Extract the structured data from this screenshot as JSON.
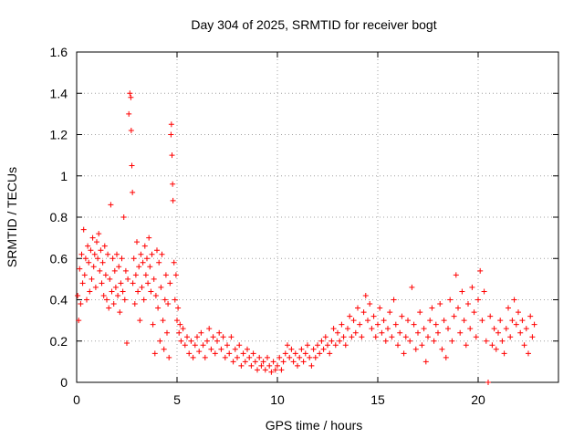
{
  "chart_data": {
    "type": "scatter",
    "title": "Day 304 of 2025, SRMTID for receiver bogt",
    "xlabel": "GPS time / hours",
    "ylabel": "SRMTID / TECUs",
    "xlim": [
      0,
      24
    ],
    "ylim": [
      0,
      1.6
    ],
    "xticks": [
      0,
      5,
      10,
      15,
      20
    ],
    "yticks": [
      0,
      0.2,
      0.4,
      0.6,
      0.8,
      1,
      1.2,
      1.4,
      1.6
    ],
    "ytick_labels": [
      "0",
      "0.2",
      "0.4",
      "0.6",
      "0.8",
      "1",
      "1.2",
      "1.4",
      "1.6"
    ],
    "grid": true,
    "marker": "+",
    "color": "#ff0000",
    "series": [
      {
        "name": "SRMTID",
        "points": [
          [
            0.05,
            0.42
          ],
          [
            0.1,
            0.3
          ],
          [
            0.15,
            0.55
          ],
          [
            0.2,
            0.38
          ],
          [
            0.25,
            0.62
          ],
          [
            0.3,
            0.48
          ],
          [
            0.35,
            0.74
          ],
          [
            0.4,
            0.52
          ],
          [
            0.45,
            0.6
          ],
          [
            0.5,
            0.4
          ],
          [
            0.55,
            0.66
          ],
          [
            0.6,
            0.58
          ],
          [
            0.65,
            0.44
          ],
          [
            0.7,
            0.64
          ],
          [
            0.75,
            0.5
          ],
          [
            0.8,
            0.7
          ],
          [
            0.85,
            0.56
          ],
          [
            0.9,
            0.62
          ],
          [
            0.95,
            0.46
          ],
          [
            1.0,
            0.68
          ],
          [
            1.05,
            0.6
          ],
          [
            1.1,
            0.72
          ],
          [
            1.15,
            0.54
          ],
          [
            1.2,
            0.64
          ],
          [
            1.25,
            0.48
          ],
          [
            1.3,
            0.58
          ],
          [
            1.35,
            0.42
          ],
          [
            1.4,
            0.66
          ],
          [
            1.45,
            0.52
          ],
          [
            1.5,
            0.4
          ],
          [
            1.55,
            0.62
          ],
          [
            1.6,
            0.36
          ],
          [
            1.65,
            0.5
          ],
          [
            1.7,
            0.86
          ],
          [
            1.75,
            0.44
          ],
          [
            1.8,
            0.6
          ],
          [
            1.85,
            0.38
          ],
          [
            1.9,
            0.54
          ],
          [
            1.95,
            0.46
          ],
          [
            2.0,
            0.62
          ],
          [
            2.05,
            0.42
          ],
          [
            2.1,
            0.56
          ],
          [
            2.15,
            0.34
          ],
          [
            2.2,
            0.48
          ],
          [
            2.25,
            0.6
          ],
          [
            2.3,
            0.44
          ],
          [
            2.35,
            0.8
          ],
          [
            2.4,
            0.4
          ],
          [
            2.45,
            0.54
          ],
          [
            2.5,
            0.19
          ],
          [
            2.55,
            0.5
          ],
          [
            2.6,
            1.3
          ],
          [
            2.65,
            1.4
          ],
          [
            2.7,
            1.38
          ],
          [
            2.72,
            1.22
          ],
          [
            2.75,
            1.05
          ],
          [
            2.78,
            0.92
          ],
          [
            2.8,
            0.48
          ],
          [
            2.85,
            0.6
          ],
          [
            2.9,
            0.38
          ],
          [
            2.95,
            0.52
          ],
          [
            3.0,
            0.68
          ],
          [
            3.05,
            0.44
          ],
          [
            3.1,
            0.56
          ],
          [
            3.15,
            0.3
          ],
          [
            3.2,
            0.62
          ],
          [
            3.25,
            0.46
          ],
          [
            3.3,
            0.58
          ],
          [
            3.35,
            0.4
          ],
          [
            3.4,
            0.66
          ],
          [
            3.45,
            0.52
          ],
          [
            3.5,
            0.6
          ],
          [
            3.55,
            0.48
          ],
          [
            3.6,
            0.7
          ],
          [
            3.65,
            0.56
          ],
          [
            3.7,
            0.44
          ],
          [
            3.75,
            0.62
          ],
          [
            3.8,
            0.28
          ],
          [
            3.85,
            0.5
          ],
          [
            3.9,
            0.14
          ],
          [
            3.95,
            0.42
          ],
          [
            4.0,
            0.64
          ],
          [
            4.05,
            0.36
          ],
          [
            4.1,
            0.58
          ],
          [
            4.15,
            0.2
          ],
          [
            4.2,
            0.46
          ],
          [
            4.25,
            0.62
          ],
          [
            4.3,
            0.3
          ],
          [
            4.35,
            0.16
          ],
          [
            4.4,
            0.4
          ],
          [
            4.45,
            0.52
          ],
          [
            4.5,
            0.24
          ],
          [
            4.55,
            0.38
          ],
          [
            4.6,
            0.12
          ],
          [
            4.65,
            0.48
          ],
          [
            4.7,
            1.2
          ],
          [
            4.72,
            1.25
          ],
          [
            4.75,
            1.1
          ],
          [
            4.78,
            0.96
          ],
          [
            4.8,
            0.88
          ],
          [
            4.85,
            0.58
          ],
          [
            4.9,
            0.4
          ],
          [
            4.95,
            0.52
          ],
          [
            5.0,
            0.3
          ],
          [
            5.05,
            0.36
          ],
          [
            5.1,
            0.24
          ],
          [
            5.15,
            0.28
          ],
          [
            5.2,
            0.2
          ],
          [
            5.3,
            0.26
          ],
          [
            5.4,
            0.18
          ],
          [
            5.5,
            0.22
          ],
          [
            5.6,
            0.14
          ],
          [
            5.7,
            0.2
          ],
          [
            5.8,
            0.12
          ],
          [
            5.9,
            0.18
          ],
          [
            6.0,
            0.22
          ],
          [
            6.1,
            0.15
          ],
          [
            6.2,
            0.24
          ],
          [
            6.3,
            0.18
          ],
          [
            6.4,
            0.12
          ],
          [
            6.5,
            0.2
          ],
          [
            6.6,
            0.26
          ],
          [
            6.7,
            0.16
          ],
          [
            6.8,
            0.22
          ],
          [
            6.9,
            0.14
          ],
          [
            7.0,
            0.2
          ],
          [
            7.1,
            0.24
          ],
          [
            7.2,
            0.16
          ],
          [
            7.3,
            0.22
          ],
          [
            7.4,
            0.12
          ],
          [
            7.5,
            0.18
          ],
          [
            7.6,
            0.14
          ],
          [
            7.7,
            0.22
          ],
          [
            7.8,
            0.1
          ],
          [
            7.9,
            0.16
          ],
          [
            8.0,
            0.12
          ],
          [
            8.1,
            0.18
          ],
          [
            8.2,
            0.08
          ],
          [
            8.3,
            0.14
          ],
          [
            8.4,
            0.1
          ],
          [
            8.5,
            0.16
          ],
          [
            8.6,
            0.12
          ],
          [
            8.7,
            0.08
          ],
          [
            8.8,
            0.14
          ],
          [
            8.9,
            0.1
          ],
          [
            9.0,
            0.06
          ],
          [
            9.1,
            0.12
          ],
          [
            9.2,
            0.08
          ],
          [
            9.3,
            0.1
          ],
          [
            9.4,
            0.06
          ],
          [
            9.5,
            0.12
          ],
          [
            9.6,
            0.08
          ],
          [
            9.7,
            0.05
          ],
          [
            9.8,
            0.1
          ],
          [
            9.9,
            0.06
          ],
          [
            10.0,
            0.08
          ],
          [
            10.1,
            0.12
          ],
          [
            10.2,
            0.06
          ],
          [
            10.3,
            0.1
          ],
          [
            10.4,
            0.14
          ],
          [
            10.5,
            0.18
          ],
          [
            10.6,
            0.12
          ],
          [
            10.7,
            0.16
          ],
          [
            10.8,
            0.1
          ],
          [
            10.9,
            0.14
          ],
          [
            11.0,
            0.08
          ],
          [
            11.1,
            0.12
          ],
          [
            11.2,
            0.16
          ],
          [
            11.3,
            0.1
          ],
          [
            11.4,
            0.14
          ],
          [
            11.5,
            0.18
          ],
          [
            11.6,
            0.12
          ],
          [
            11.7,
            0.08
          ],
          [
            11.8,
            0.16
          ],
          [
            11.9,
            0.12
          ],
          [
            12.0,
            0.18
          ],
          [
            12.1,
            0.14
          ],
          [
            12.2,
            0.2
          ],
          [
            12.3,
            0.16
          ],
          [
            12.4,
            0.22
          ],
          [
            12.5,
            0.18
          ],
          [
            12.6,
            0.14
          ],
          [
            12.7,
            0.2
          ],
          [
            12.8,
            0.26
          ],
          [
            12.9,
            0.18
          ],
          [
            13.0,
            0.24
          ],
          [
            13.1,
            0.2
          ],
          [
            13.2,
            0.28
          ],
          [
            13.3,
            0.22
          ],
          [
            13.4,
            0.18
          ],
          [
            13.5,
            0.26
          ],
          [
            13.6,
            0.32
          ],
          [
            13.7,
            0.22
          ],
          [
            13.8,
            0.3
          ],
          [
            13.9,
            0.24
          ],
          [
            14.0,
            0.36
          ],
          [
            14.1,
            0.28
          ],
          [
            14.2,
            0.22
          ],
          [
            14.3,
            0.34
          ],
          [
            14.4,
            0.42
          ],
          [
            14.5,
            0.3
          ],
          [
            14.6,
            0.38
          ],
          [
            14.7,
            0.26
          ],
          [
            14.8,
            0.32
          ],
          [
            14.9,
            0.22
          ],
          [
            15.0,
            0.28
          ],
          [
            15.1,
            0.36
          ],
          [
            15.2,
            0.24
          ],
          [
            15.3,
            0.3
          ],
          [
            15.4,
            0.2
          ],
          [
            15.5,
            0.26
          ],
          [
            15.6,
            0.34
          ],
          [
            15.7,
            0.22
          ],
          [
            15.8,
            0.4
          ],
          [
            15.9,
            0.28
          ],
          [
            16.0,
            0.18
          ],
          [
            16.1,
            0.24
          ],
          [
            16.2,
            0.32
          ],
          [
            16.3,
            0.14
          ],
          [
            16.4,
            0.22
          ],
          [
            16.5,
            0.3
          ],
          [
            16.6,
            0.2
          ],
          [
            16.7,
            0.46
          ],
          [
            16.8,
            0.28
          ],
          [
            16.9,
            0.16
          ],
          [
            17.0,
            0.24
          ],
          [
            17.1,
            0.34
          ],
          [
            17.2,
            0.18
          ],
          [
            17.3,
            0.26
          ],
          [
            17.4,
            0.1
          ],
          [
            17.5,
            0.22
          ],
          [
            17.6,
            0.3
          ],
          [
            17.7,
            0.36
          ],
          [
            17.8,
            0.2
          ],
          [
            17.9,
            0.28
          ],
          [
            18.0,
            0.24
          ],
          [
            18.1,
            0.38
          ],
          [
            18.2,
            0.16
          ],
          [
            18.3,
            0.3
          ],
          [
            18.4,
            0.12
          ],
          [
            18.5,
            0.26
          ],
          [
            18.6,
            0.4
          ],
          [
            18.7,
            0.2
          ],
          [
            18.8,
            0.32
          ],
          [
            18.9,
            0.52
          ],
          [
            19.0,
            0.36
          ],
          [
            19.1,
            0.24
          ],
          [
            19.2,
            0.44
          ],
          [
            19.3,
            0.3
          ],
          [
            19.4,
            0.18
          ],
          [
            19.5,
            0.38
          ],
          [
            19.6,
            0.26
          ],
          [
            19.7,
            0.46
          ],
          [
            19.8,
            0.34
          ],
          [
            19.9,
            0.22
          ],
          [
            20.0,
            0.4
          ],
          [
            20.1,
            0.54
          ],
          [
            20.2,
            0.3
          ],
          [
            20.3,
            0.44
          ],
          [
            20.4,
            0.2
          ],
          [
            20.5,
            0.0
          ],
          [
            20.6,
            0.32
          ],
          [
            20.7,
            0.18
          ],
          [
            20.8,
            0.26
          ],
          [
            20.9,
            0.16
          ],
          [
            21.0,
            0.24
          ],
          [
            21.1,
            0.3
          ],
          [
            21.2,
            0.2
          ],
          [
            21.3,
            0.14
          ],
          [
            21.4,
            0.26
          ],
          [
            21.5,
            0.36
          ],
          [
            21.6,
            0.22
          ],
          [
            21.7,
            0.3
          ],
          [
            21.8,
            0.4
          ],
          [
            21.9,
            0.28
          ],
          [
            22.0,
            0.34
          ],
          [
            22.1,
            0.24
          ],
          [
            22.2,
            0.3
          ],
          [
            22.3,
            0.18
          ],
          [
            22.4,
            0.26
          ],
          [
            22.5,
            0.14
          ],
          [
            22.6,
            0.32
          ],
          [
            22.7,
            0.22
          ],
          [
            22.8,
            0.28
          ]
        ]
      }
    ]
  }
}
